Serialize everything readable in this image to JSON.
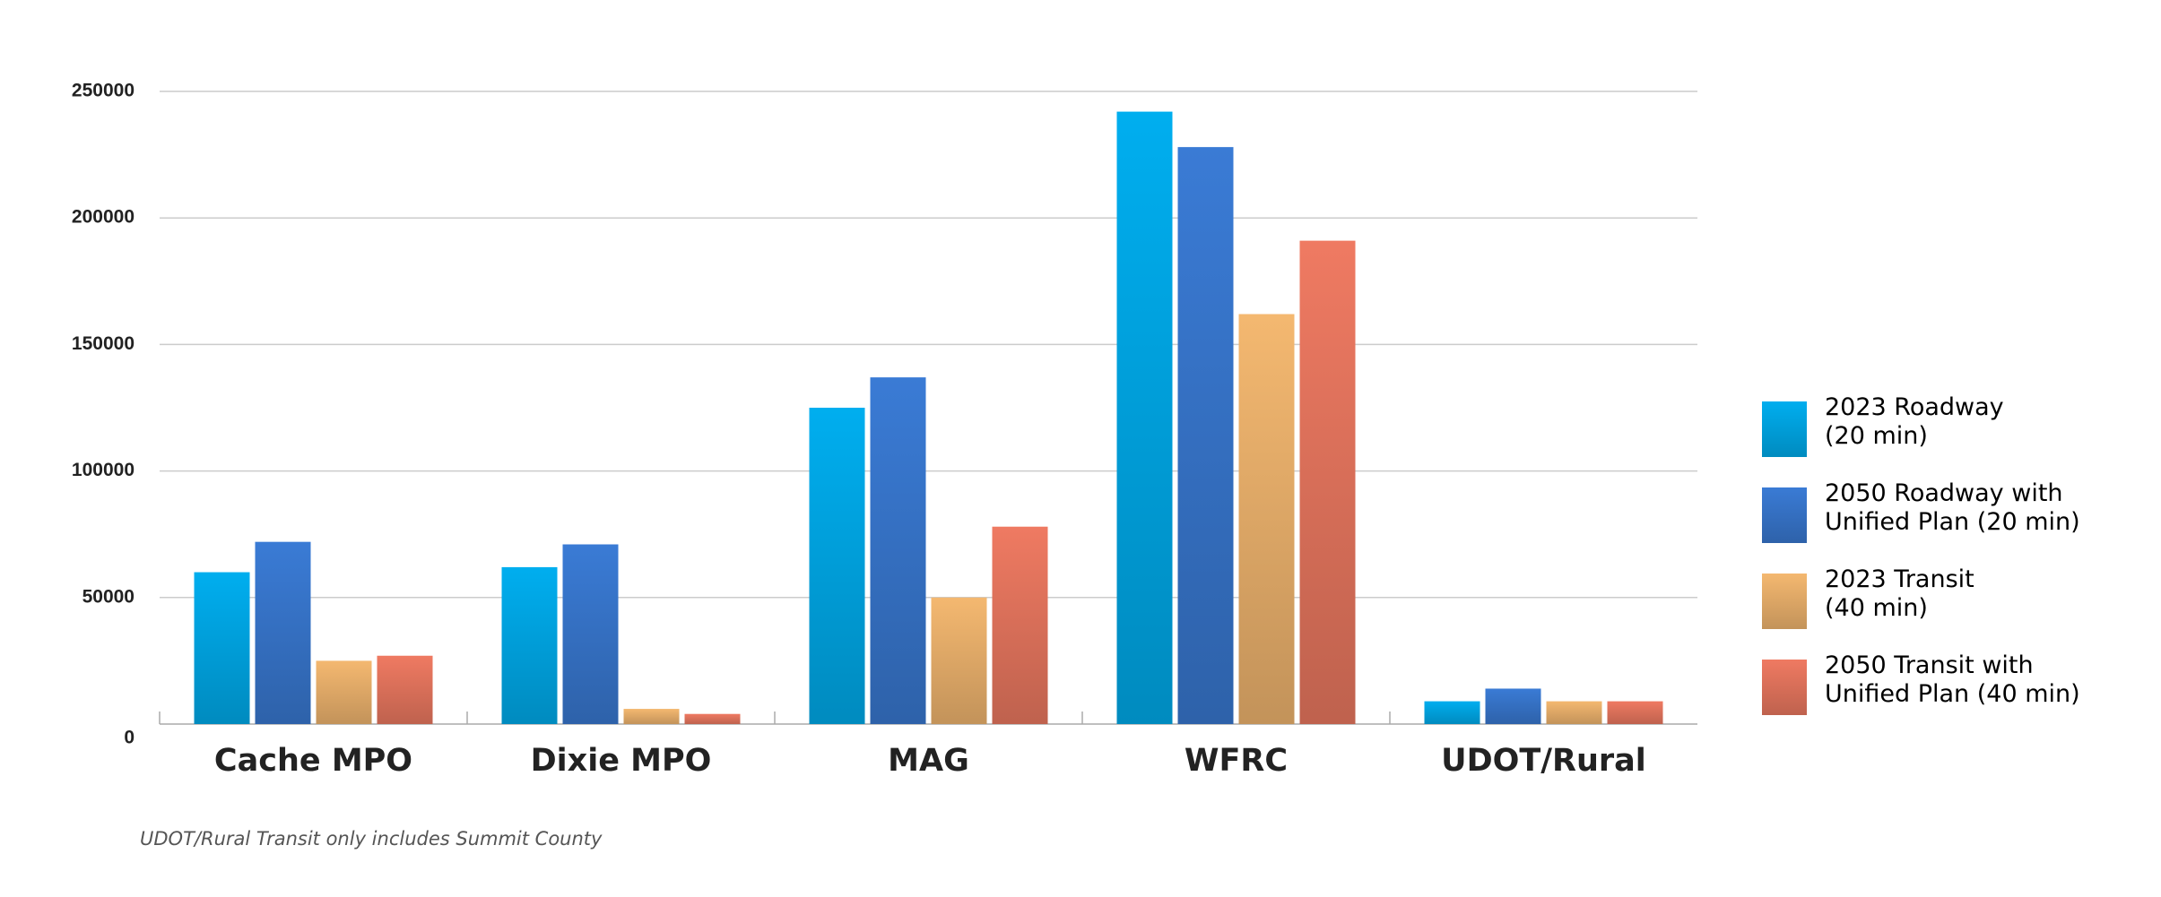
{
  "chart_data": {
    "type": "bar",
    "categories": [
      "Cache MPO",
      "Dixie MPO",
      "MAG",
      "WFRC",
      "UDOT/Rural"
    ],
    "series": [
      {
        "name": "2023 Roadway\n(20 min)",
        "color": "#00aeef",
        "values": [
          60000,
          62000,
          125000,
          242000,
          9000
        ]
      },
      {
        "name": "2050 Roadway with\nUnified Plan (20 min)",
        "color": "#3a7bd5",
        "values": [
          72000,
          71000,
          137000,
          228000,
          14000
        ]
      },
      {
        "name": "2023 Transit\n(40 min)",
        "color": "#f4b870",
        "values": [
          25000,
          6000,
          50000,
          162000,
          9000
        ]
      },
      {
        "name": "2050 Transit with\nUnified Plan (40 min)",
        "color": "#ef7a62",
        "values": [
          27000,
          4000,
          78000,
          191000,
          9000
        ]
      }
    ],
    "ylim": [
      0,
      250000
    ],
    "yticks": [
      0,
      50000,
      100000,
      150000,
      200000,
      250000
    ],
    "grid": true,
    "legend": "right",
    "note": "UDOT/Rural Transit only includes Summit County"
  }
}
